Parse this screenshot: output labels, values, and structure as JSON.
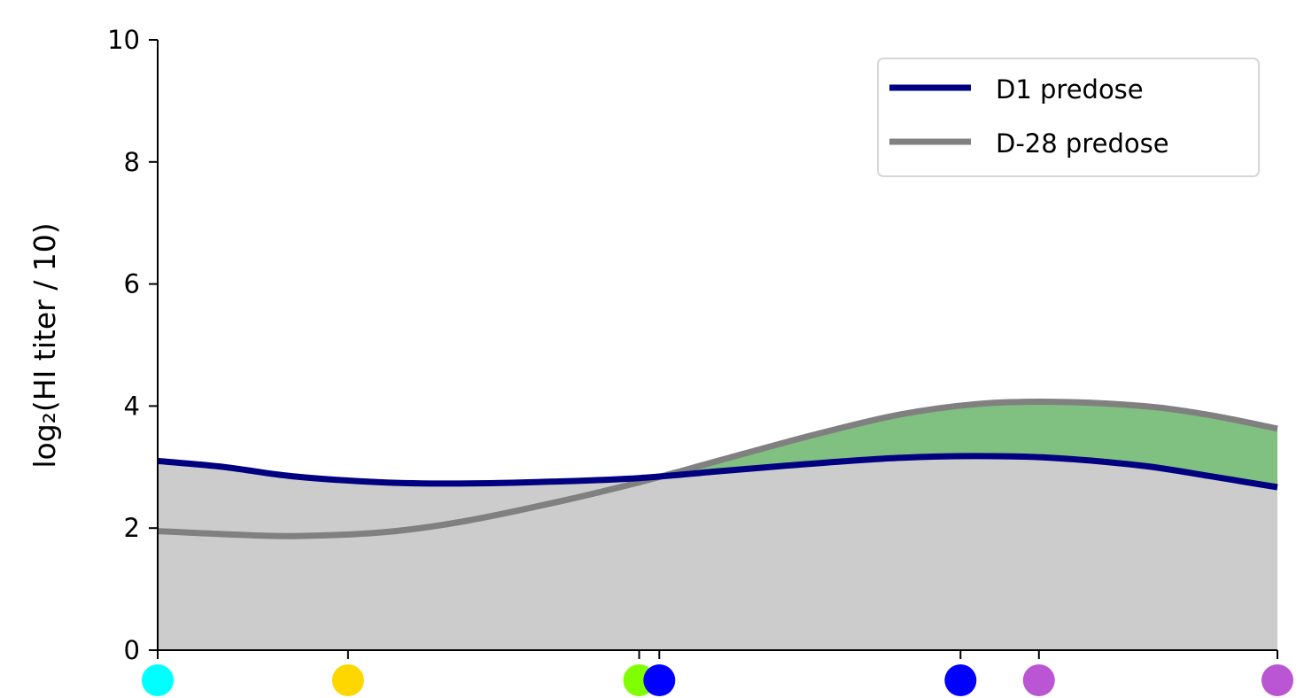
{
  "chart_data": {
    "type": "area",
    "title": "",
    "xlabel": "",
    "ylabel": "log₂(HI titer / 10)",
    "ylim": [
      0,
      10
    ],
    "yticks": [
      0,
      2,
      4,
      6,
      8,
      10
    ],
    "xlim": [
      0,
      1
    ],
    "grid": false,
    "legend_position": "top-right",
    "series": [
      {
        "name": "D1 predose",
        "color": "#000080",
        "x": [
          0,
          0.06,
          0.12,
          0.2,
          0.27,
          0.35,
          0.43,
          0.5,
          0.58,
          0.66,
          0.73,
          0.8,
          0.88,
          0.94,
          1
        ],
        "y": [
          3.1,
          3.0,
          2.85,
          2.75,
          2.73,
          2.76,
          2.82,
          2.93,
          3.05,
          3.15,
          3.18,
          3.15,
          3.02,
          2.85,
          2.67
        ]
      },
      {
        "name": "D-28 predose",
        "color": "#808080",
        "x": [
          0,
          0.06,
          0.12,
          0.2,
          0.27,
          0.35,
          0.43,
          0.5,
          0.58,
          0.66,
          0.73,
          0.8,
          0.88,
          0.94,
          1
        ],
        "y": [
          1.95,
          1.9,
          1.87,
          1.93,
          2.1,
          2.4,
          2.75,
          3.1,
          3.5,
          3.85,
          4.03,
          4.07,
          4.0,
          3.85,
          3.63
        ]
      }
    ],
    "fill_between_color": "#80c080",
    "fill_under_color": "#cccccc",
    "markers": [
      {
        "x": 0.0,
        "color": "#00ffff"
      },
      {
        "x": 0.17,
        "color": "#ffd700"
      },
      {
        "x": 0.43,
        "color": "#7fff00"
      },
      {
        "x": 0.448,
        "color": "#0000ff"
      },
      {
        "x": 0.717,
        "color": "#0000ff"
      },
      {
        "x": 0.787,
        "color": "#ba55d3"
      },
      {
        "x": 1.0,
        "color": "#ba55d3"
      }
    ]
  }
}
